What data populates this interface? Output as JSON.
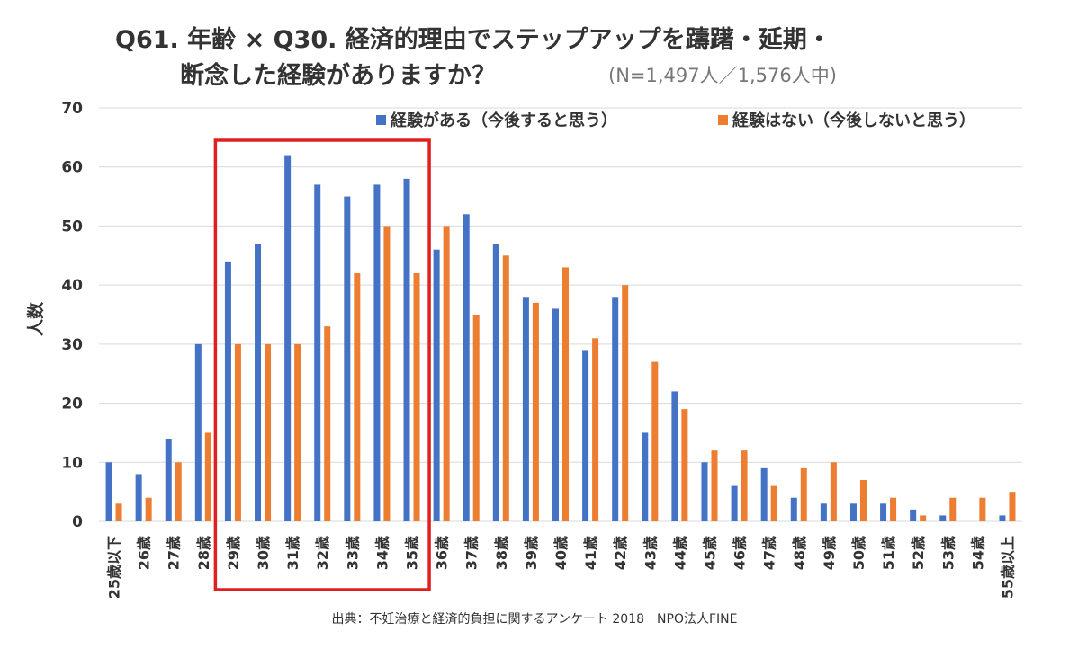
{
  "title_line1": "Q61. 年齢 × Q30. 経済的理由でステップアップを躊躇・延期・",
  "title_line2": "断念した経験がありますか？",
  "subtitle": "(N=1,497人／1,576人中)",
  "source": "出典：不妊治療と経済的負担に関するアンケート 2018　NPO法人FINE",
  "colors": {
    "series1": "#4472C4",
    "series2": "#ED7D31",
    "highlight": "#E02020",
    "grid": "#D9D9D9"
  },
  "chart_data": {
    "type": "bar",
    "ylabel": "人数",
    "ylim": [
      0,
      70
    ],
    "yticks": [
      0,
      10,
      20,
      30,
      40,
      50,
      60,
      70
    ],
    "categories": [
      "25歳以下",
      "26歳",
      "27歳",
      "28歳",
      "29歳",
      "30歳",
      "31歳",
      "32歳",
      "33歳",
      "34歳",
      "35歳",
      "36歳",
      "37歳",
      "38歳",
      "39歳",
      "40歳",
      "41歳",
      "42歳",
      "43歳",
      "44歳",
      "45歳",
      "46歳",
      "47歳",
      "48歳",
      "49歳",
      "50歳",
      "51歳",
      "52歳",
      "53歳",
      "54歳",
      "55歳以上"
    ],
    "series": [
      {
        "name": "経験がある（今後すると思う）",
        "values": [
          10,
          8,
          14,
          30,
          44,
          47,
          62,
          57,
          55,
          57,
          58,
          46,
          52,
          47,
          38,
          36,
          29,
          38,
          15,
          22,
          10,
          6,
          9,
          4,
          3,
          3,
          3,
          2,
          1,
          0,
          1
        ]
      },
      {
        "name": "経験はない（今後しないと思う）",
        "values": [
          3,
          4,
          10,
          15,
          30,
          30,
          30,
          33,
          42,
          50,
          42,
          50,
          35,
          45,
          37,
          43,
          31,
          40,
          27,
          19,
          12,
          12,
          6,
          9,
          10,
          7,
          4,
          1,
          4,
          4,
          5
        ]
      }
    ],
    "legend_position": "top-right",
    "grid": true,
    "highlight_range": [
      "29歳",
      "35歳"
    ]
  }
}
